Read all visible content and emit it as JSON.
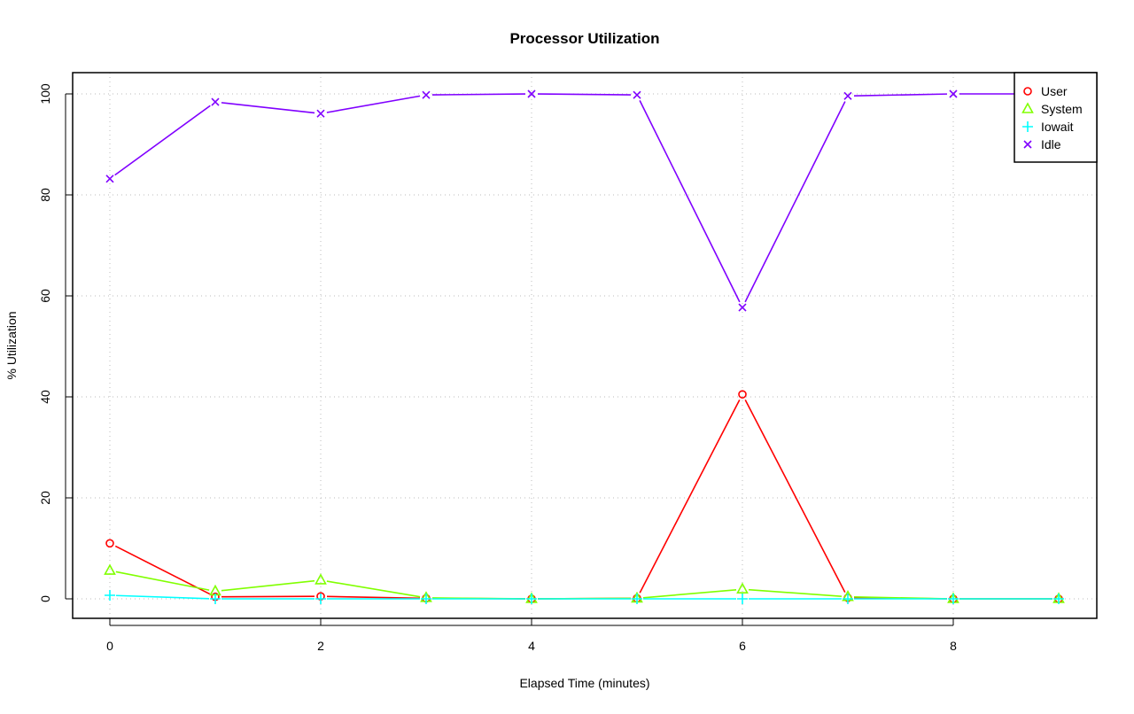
{
  "chart_data": {
    "type": "line",
    "title": "Processor Utilization",
    "xlabel": "Elapsed Time (minutes)",
    "ylabel": "% Utilization",
    "xlim": [
      0,
      9
    ],
    "ylim": [
      0,
      100
    ],
    "x_ticks": [
      0,
      2,
      4,
      6,
      8
    ],
    "y_ticks": [
      0,
      20,
      40,
      60,
      80,
      100
    ],
    "grid": true,
    "legend_position": "top-right",
    "x": [
      0,
      1,
      2,
      3,
      4,
      5,
      6,
      7,
      8,
      9
    ],
    "series": [
      {
        "name": "User",
        "color": "#ff0000",
        "marker": "circle",
        "values": [
          11.0,
          0.4,
          0.5,
          0.1,
          0.0,
          0.1,
          40.5,
          0.2,
          0.0,
          0.0
        ]
      },
      {
        "name": "System",
        "color": "#80ff00",
        "marker": "triangle",
        "values": [
          5.6,
          1.5,
          3.7,
          0.2,
          0.0,
          0.1,
          1.9,
          0.4,
          0.0,
          0.0
        ]
      },
      {
        "name": "Iowait",
        "color": "#00ffff",
        "marker": "plus",
        "values": [
          0.7,
          0.0,
          0.0,
          0.0,
          0.0,
          0.0,
          0.0,
          0.0,
          0.0,
          0.0
        ]
      },
      {
        "name": "Idle",
        "color": "#8000ff",
        "marker": "x",
        "values": [
          83.2,
          98.4,
          96.1,
          99.8,
          100.0,
          99.8,
          57.7,
          99.6,
          100.0,
          100.0
        ]
      }
    ]
  }
}
